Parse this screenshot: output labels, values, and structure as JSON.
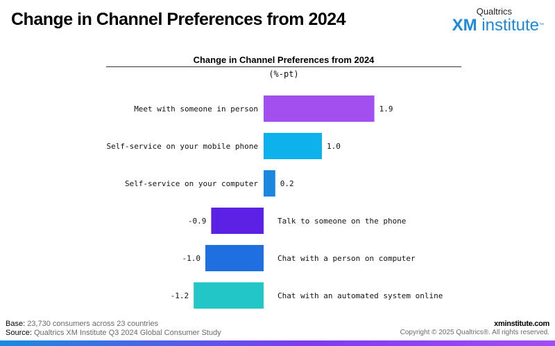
{
  "header": {
    "title": "Change in Channel Preferences from 2024",
    "logo_top": "Qualtrics",
    "logo_main_bold": "XM",
    "logo_main_rest": " institute",
    "logo_tm": "™"
  },
  "chart_data": {
    "type": "bar",
    "orientation": "horizontal",
    "title": "Change in Channel Preferences from 2024",
    "subtitle": "(%-pt)",
    "categories": [
      "Meet with someone in person",
      "Self-service on your mobile phone",
      "Self-service on your computer",
      "Talk to someone on the phone",
      "Chat with a person on computer",
      "Chat with an automated system online"
    ],
    "values": [
      1.9,
      1.0,
      0.2,
      -0.9,
      -1.0,
      -1.2
    ],
    "value_labels": [
      "1.9",
      "1.0",
      "0.2",
      "-0.9",
      "-1.0",
      "-1.2"
    ],
    "colors": [
      "#a34ff0",
      "#0db2ec",
      "#1a88e2",
      "#5b22e6",
      "#1f6fe0",
      "#23c6c6"
    ],
    "xlim": [
      -1.2,
      1.9
    ],
    "grid": false,
    "legend": "none"
  },
  "footer": {
    "base_label": "Base:",
    "base_value": " 23,730 consumers across 23 countries",
    "source_label": "Source:",
    "source_value": " Qualtrics XM Institute Q3 2024 Global Consumer Study",
    "site": "xminstitute.com",
    "copyright": "Copyright © 2025 Qualtrics®. All rights reserved."
  }
}
